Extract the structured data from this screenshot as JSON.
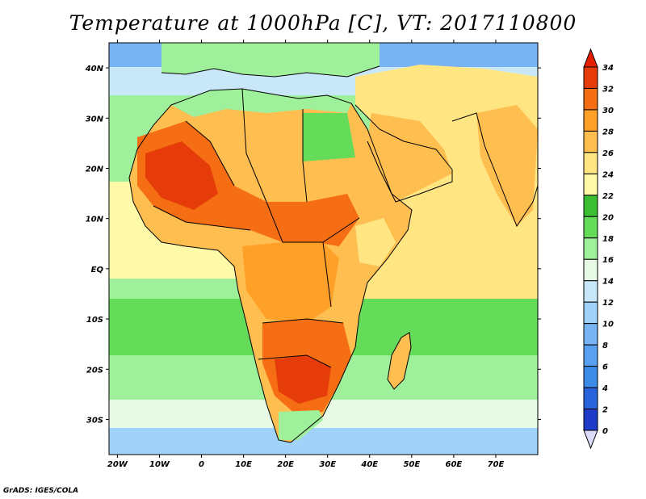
{
  "title": "Temperature at 1000hPa [C], VT: 2017110800",
  "credit": "GrADS: IGES/COLA",
  "map": {
    "lon_range": [
      -22,
      80
    ],
    "lat_range": [
      -37,
      45
    ],
    "lon_ticks": [
      {
        "value": -20,
        "label": "20W"
      },
      {
        "value": -10,
        "label": "10W"
      },
      {
        "value": 0,
        "label": "0"
      },
      {
        "value": 10,
        "label": "10E"
      },
      {
        "value": 20,
        "label": "20E"
      },
      {
        "value": 30,
        "label": "30E"
      },
      {
        "value": 40,
        "label": "40E"
      },
      {
        "value": 50,
        "label": "50E"
      },
      {
        "value": 60,
        "label": "60E"
      },
      {
        "value": 70,
        "label": "70E"
      }
    ],
    "lat_ticks": [
      {
        "value": 40,
        "label": "40N"
      },
      {
        "value": 30,
        "label": "30N"
      },
      {
        "value": 20,
        "label": "20N"
      },
      {
        "value": 10,
        "label": "10N"
      },
      {
        "value": 0,
        "label": "EQ"
      },
      {
        "value": -10,
        "label": "10S"
      },
      {
        "value": -20,
        "label": "20S"
      },
      {
        "value": -30,
        "label": "30S"
      }
    ]
  },
  "colorbar": {
    "levels": [
      {
        "label": "0",
        "color": "#0a0a7a"
      },
      {
        "label": "2",
        "color": "#1e3cc8"
      },
      {
        "label": "4",
        "color": "#2a64dc"
      },
      {
        "label": "6",
        "color": "#3c8ce8"
      },
      {
        "label": "8",
        "color": "#5aa0f0"
      },
      {
        "label": "10",
        "color": "#78b4f4"
      },
      {
        "label": "12",
        "color": "#a0d2fa"
      },
      {
        "label": "14",
        "color": "#c8e8fa"
      },
      {
        "label": "16",
        "color": "#e6fae6"
      },
      {
        "label": "18",
        "color": "#9ef09a"
      },
      {
        "label": "20",
        "color": "#64dc5a"
      },
      {
        "label": "22",
        "color": "#3cbe32"
      },
      {
        "label": "24",
        "color": "#fffaa8"
      },
      {
        "label": "26",
        "color": "#ffe682"
      },
      {
        "label": "28",
        "color": "#ffbe50"
      },
      {
        "label": "30",
        "color": "#ffa028"
      },
      {
        "label": "32",
        "color": "#f56e14"
      },
      {
        "label": "34",
        "color": "#e63c0a"
      }
    ],
    "top_color": "#e61e00"
  },
  "colors": {
    "ocean_base": "#a0d2fa",
    "land_base": "#ffbe50"
  }
}
